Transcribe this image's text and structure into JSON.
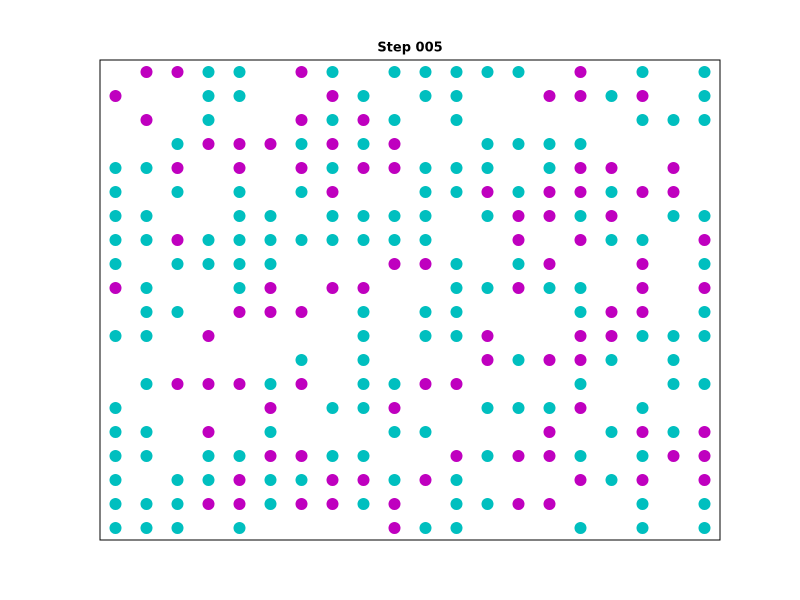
{
  "chart_data": {
    "type": "scatter",
    "title": "Step 005",
    "xlim": [
      -0.5,
      19.5
    ],
    "ylim": [
      -0.5,
      19.5
    ],
    "series": [
      {
        "color": "#00bfbf",
        "x": [
          3,
          4,
          7,
          9,
          10,
          11,
          12,
          13,
          17,
          19,
          3,
          4,
          8,
          10,
          11,
          16,
          19,
          3,
          7,
          9,
          11,
          17,
          18,
          19,
          2,
          6,
          8,
          12,
          13,
          14,
          15,
          0,
          1,
          7,
          10,
          11,
          12,
          14,
          0,
          2,
          4,
          6,
          10,
          11,
          13,
          16,
          0,
          1,
          4,
          5,
          7,
          8,
          9,
          10,
          12,
          15,
          18,
          19,
          0,
          1,
          3,
          4,
          5,
          6,
          7,
          8,
          9,
          10,
          16,
          17,
          0,
          2,
          3,
          4,
          5,
          11,
          13,
          19,
          1,
          4,
          11,
          12,
          14,
          15,
          1,
          2,
          8,
          10,
          11,
          15,
          19,
          0,
          1,
          8,
          10,
          11,
          17,
          18,
          19,
          6,
          8,
          13,
          16,
          18,
          1,
          5,
          8,
          9,
          15,
          18,
          19,
          0,
          7,
          8,
          12,
          13,
          14,
          17,
          0,
          1,
          5,
          9,
          10,
          16,
          18,
          0,
          1,
          3,
          4,
          7,
          8,
          12,
          15,
          17,
          0,
          2,
          3,
          5,
          6,
          9,
          11,
          16,
          0,
          1,
          2,
          5,
          8,
          11,
          12,
          17,
          19,
          0,
          1,
          2,
          4,
          10,
          11,
          15,
          17,
          19
        ],
        "y": [
          19,
          19,
          19,
          19,
          19,
          19,
          19,
          19,
          19,
          19,
          18,
          18,
          18,
          18,
          18,
          18,
          18,
          17,
          17,
          17,
          17,
          17,
          17,
          17,
          16,
          16,
          16,
          16,
          16,
          16,
          16,
          15,
          15,
          15,
          15,
          15,
          15,
          15,
          14,
          14,
          14,
          14,
          14,
          14,
          14,
          14,
          13,
          13,
          13,
          13,
          13,
          13,
          13,
          13,
          13,
          13,
          13,
          13,
          12,
          12,
          12,
          12,
          12,
          12,
          12,
          12,
          12,
          12,
          12,
          12,
          11,
          11,
          11,
          11,
          11,
          11,
          11,
          11,
          10,
          10,
          10,
          10,
          10,
          10,
          9,
          9,
          9,
          9,
          9,
          9,
          9,
          8,
          8,
          8,
          8,
          8,
          8,
          8,
          8,
          7,
          7,
          7,
          7,
          7,
          6,
          6,
          6,
          6,
          6,
          6,
          6,
          5,
          5,
          5,
          5,
          5,
          5,
          5,
          4,
          4,
          4,
          4,
          4,
          4,
          4,
          3,
          3,
          3,
          3,
          3,
          3,
          3,
          3,
          3,
          2,
          2,
          2,
          2,
          2,
          2,
          2,
          2,
          1,
          1,
          1,
          1,
          1,
          1,
          1,
          1,
          1,
          0,
          0,
          0,
          0,
          0,
          0,
          0,
          0,
          0
        ]
      },
      {
        "color": "#bf00bf",
        "x": [
          1,
          2,
          6,
          15,
          0,
          7,
          14,
          15,
          17,
          1,
          6,
          8,
          3,
          4,
          5,
          7,
          9,
          2,
          4,
          6,
          8,
          9,
          15,
          16,
          18,
          7,
          12,
          14,
          15,
          17,
          18,
          13,
          14,
          16,
          2,
          13,
          15,
          19,
          9,
          10,
          14,
          17,
          0,
          5,
          7,
          8,
          13,
          17,
          19,
          4,
          5,
          6,
          16,
          17,
          3,
          12,
          15,
          16,
          12,
          14,
          15,
          2,
          3,
          4,
          6,
          10,
          11,
          5,
          9,
          15,
          3,
          14,
          17,
          19,
          5,
          6,
          11,
          13,
          14,
          18,
          19,
          4,
          7,
          8,
          10,
          15,
          17,
          19,
          3,
          4,
          6,
          7,
          9,
          13,
          14,
          9
        ],
        "y": [
          19,
          19,
          19,
          19,
          18,
          18,
          18,
          18,
          18,
          17,
          17,
          17,
          16,
          16,
          16,
          16,
          16,
          15,
          15,
          15,
          15,
          15,
          15,
          15,
          15,
          14,
          14,
          14,
          14,
          14,
          14,
          13,
          13,
          13,
          12,
          12,
          12,
          12,
          11,
          11,
          11,
          11,
          10,
          10,
          10,
          10,
          10,
          10,
          10,
          9,
          9,
          9,
          9,
          9,
          8,
          8,
          8,
          8,
          7,
          7,
          7,
          6,
          6,
          6,
          6,
          6,
          6,
          5,
          5,
          5,
          4,
          4,
          4,
          4,
          3,
          3,
          3,
          3,
          3,
          3,
          3,
          2,
          2,
          2,
          2,
          2,
          2,
          2,
          1,
          1,
          1,
          1,
          1,
          1,
          1,
          0
        ]
      }
    ]
  }
}
